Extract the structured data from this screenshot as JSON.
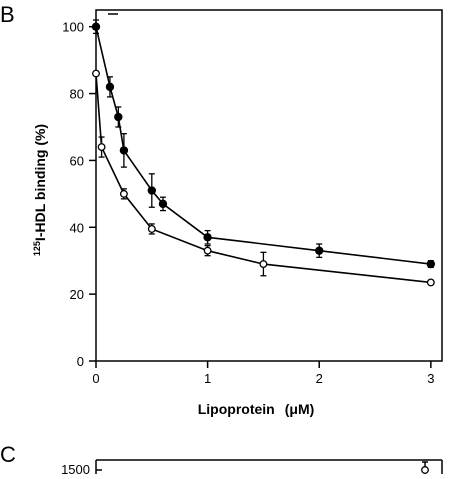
{
  "panels": {
    "b_letter": "B",
    "c_letter": "C",
    "c_partial_tick": "1500"
  },
  "chart_data": {
    "type": "line",
    "title": "",
    "xlabel": "Lipoprotein",
    "xlabel_unit": "(μM)",
    "ylabel": "I-HDL binding (%)",
    "ylabel_superscript": "125",
    "xlim": [
      0,
      3.1
    ],
    "ylim": [
      0,
      105
    ],
    "xticks": [
      0,
      1,
      2,
      3
    ],
    "yticks": [
      0,
      20,
      40,
      60,
      80,
      100
    ],
    "grid": false,
    "legend": "none",
    "series": [
      {
        "marker": "filled-circle",
        "x": [
          0,
          0.125,
          0.2,
          0.25,
          0.5,
          0.6,
          1,
          2,
          3
        ],
        "y": [
          100,
          82,
          73,
          63,
          51,
          47,
          37,
          33,
          29
        ],
        "err": [
          2,
          3,
          3,
          5,
          5,
          2,
          2,
          2,
          1
        ]
      },
      {
        "marker": "open-circle",
        "x": [
          0,
          0.05,
          0.25,
          0.5,
          1,
          1.5,
          3
        ],
        "y": [
          86,
          64,
          50,
          39.5,
          33,
          29,
          23.5
        ],
        "err": [
          0,
          3,
          1.5,
          1.5,
          1.5,
          3.5,
          0
        ]
      }
    ]
  }
}
